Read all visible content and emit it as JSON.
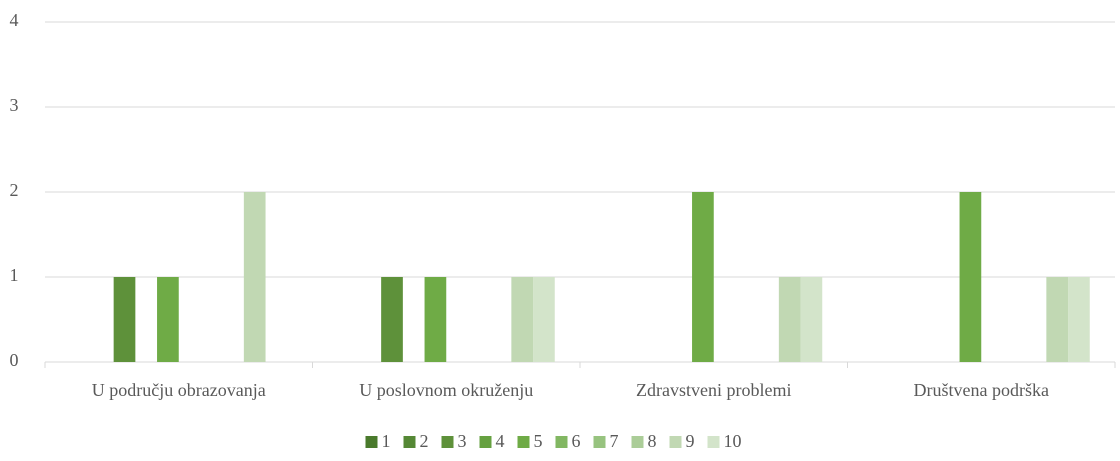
{
  "chart_data": {
    "type": "bar",
    "categories": [
      "U području obrazovanja",
      "U poslovnom okruženju",
      "Zdravstveni problemi",
      "Društvena podrška"
    ],
    "series": [
      {
        "name": "1",
        "color": "#4a7a2c",
        "values": [
          0,
          0,
          0,
          0
        ]
      },
      {
        "name": "2",
        "color": "#558835",
        "values": [
          0,
          0,
          0,
          0
        ]
      },
      {
        "name": "3",
        "color": "#5e913a",
        "values": [
          1,
          1,
          0,
          0
        ]
      },
      {
        "name": "4",
        "color": "#66a141",
        "values": [
          0,
          0,
          0,
          0
        ]
      },
      {
        "name": "5",
        "color": "#6fab46",
        "values": [
          1,
          1,
          2,
          2
        ]
      },
      {
        "name": "6",
        "color": "#82b762",
        "values": [
          0,
          0,
          0,
          0
        ]
      },
      {
        "name": "7",
        "color": "#97c37f",
        "values": [
          0,
          0,
          0,
          0
        ]
      },
      {
        "name": "8",
        "color": "#abcd98",
        "values": [
          0,
          0,
          0,
          0
        ]
      },
      {
        "name": "9",
        "color": "#c1d8b3",
        "values": [
          2,
          1,
          1,
          1
        ]
      },
      {
        "name": "10",
        "color": "#d3e4ca",
        "values": [
          0,
          1,
          1,
          1
        ]
      }
    ],
    "ylim": [
      0,
      4
    ],
    "yticks": [
      0,
      1,
      2,
      3,
      4
    ],
    "grid": true,
    "legend": "bottom"
  }
}
